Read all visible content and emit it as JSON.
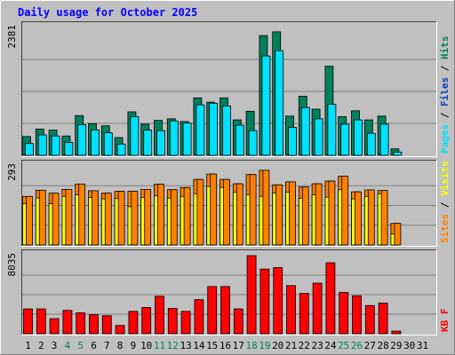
{
  "title": "Daily usage for October 2025",
  "colors": {
    "background": "#c0c0c0",
    "title": "#0000ff",
    "hits": "#00805c",
    "files": "#00e0ff",
    "pages": "#0040c0",
    "visits": "#ffff00",
    "sites": "#ff8000",
    "kbf": "#ff0000",
    "weekend_label": "#00805c",
    "day_label": "#000000"
  },
  "chart_data": [
    {
      "type": "bar",
      "panel": "hits_files_pages",
      "y_max_label": "2381",
      "y_max": 2381,
      "right_labels": [
        {
          "text": "Pages",
          "color": "#00e0ff"
        },
        {
          "text": " / ",
          "color": "#000000"
        },
        {
          "text": "Files",
          "color": "#0040c0"
        },
        {
          "text": " / ",
          "color": "#000000"
        },
        {
          "text": "Hits",
          "color": "#00805c"
        }
      ],
      "series": [
        {
          "name": "Hits",
          "values": [
            350,
            490,
            470,
            360,
            740,
            590,
            550,
            330,
            810,
            580,
            650,
            680,
            630,
            1070,
            990,
            1070,
            660,
            820,
            2230,
            2300,
            730,
            1100,
            860,
            1660,
            720,
            830,
            660,
            730,
            120,
            0,
            0
          ]
        },
        {
          "name": "Files",
          "values": [
            220,
            380,
            360,
            240,
            570,
            470,
            420,
            210,
            720,
            470,
            460,
            640,
            600,
            940,
            970,
            920,
            560,
            460,
            1850,
            1950,
            520,
            890,
            680,
            950,
            580,
            660,
            410,
            580,
            60,
            0,
            0
          ]
        },
        {
          "name": "Pages",
          "values": [
            0,
            0,
            0,
            0,
            0,
            0,
            0,
            0,
            0,
            0,
            0,
            0,
            0,
            0,
            0,
            0,
            0,
            0,
            0,
            0,
            0,
            0,
            0,
            0,
            0,
            0,
            0,
            0,
            0,
            0,
            0
          ]
        }
      ]
    },
    {
      "type": "bar",
      "panel": "sites_visits",
      "y_max_label": "293",
      "y_max": 293,
      "right_labels": [
        {
          "text": "Sites",
          "color": "#ff8000"
        },
        {
          "text": " / ",
          "color": "#000000"
        },
        {
          "text": "Visits",
          "color": "#ffff00"
        }
      ],
      "series": [
        {
          "name": "Visits",
          "values": [
            153,
            174,
            153,
            180,
            186,
            176,
            171,
            172,
            142,
            176,
            182,
            174,
            180,
            190,
            217,
            213,
            196,
            186,
            180,
            193,
            196,
            173,
            186,
            177,
            205,
            171,
            180,
            190,
            40,
            0,
            0
          ]
        },
        {
          "name": "Sites",
          "values": [
            180,
            203,
            192,
            206,
            226,
            201,
            192,
            199,
            199,
            206,
            225,
            205,
            213,
            243,
            263,
            243,
            227,
            261,
            277,
            223,
            234,
            215,
            227,
            237,
            255,
            197,
            204,
            202,
            80,
            0,
            0
          ]
        }
      ]
    },
    {
      "type": "bar",
      "panel": "kbf",
      "y_max_label": "8035",
      "y_max": 8035,
      "right_labels": [
        {
          "text": "KB F",
          "color": "#ff0000"
        }
      ],
      "series": [
        {
          "name": "KB F",
          "values": [
            2550,
            2550,
            1550,
            2400,
            2150,
            1950,
            1850,
            850,
            2300,
            2700,
            3850,
            2600,
            2300,
            3500,
            4850,
            4850,
            2550,
            8035,
            6650,
            6800,
            4950,
            4150,
            5200,
            7300,
            4250,
            3900,
            2900,
            3150,
            270,
            0,
            0
          ]
        }
      ]
    }
  ],
  "days": [
    "1",
    "2",
    "3",
    "4",
    "5",
    "6",
    "7",
    "8",
    "9",
    "10",
    "11",
    "12",
    "13",
    "14",
    "15",
    "16",
    "17",
    "18",
    "19",
    "20",
    "21",
    "22",
    "23",
    "24",
    "25",
    "26",
    "27",
    "28",
    "29",
    "30",
    "31"
  ],
  "weekend_days": [
    "4",
    "5",
    "11",
    "12",
    "18",
    "19",
    "25",
    "26"
  ]
}
